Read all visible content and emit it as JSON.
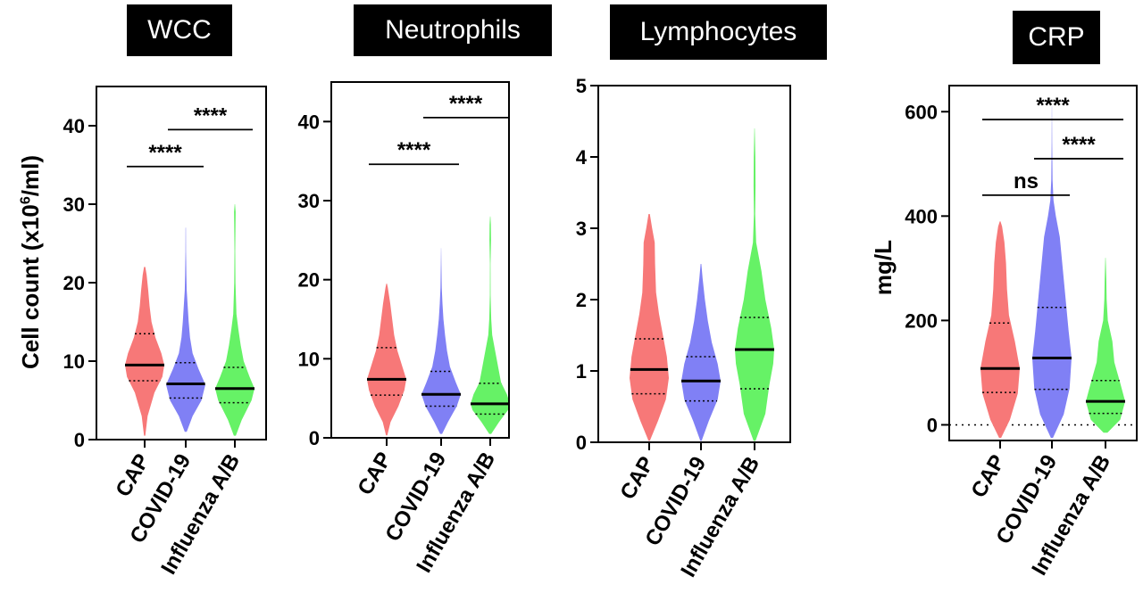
{
  "figure": {
    "colors": {
      "CAP": "#f77878",
      "COVID-19": "#8080f5",
      "Influenza A/B": "#66f266",
      "axis": "#000000"
    }
  },
  "chart_data": [
    {
      "type": "violin",
      "title": "WCC",
      "ylabel": "Cell count (x10⁶/ml)",
      "ylabel_parts": {
        "pre": "Cell count (x10",
        "sup": "6",
        "post": "/ml)"
      },
      "ylim": [
        0,
        45
      ],
      "yticks": [
        0,
        10,
        20,
        30,
        40
      ],
      "categories": [
        "CAP",
        "COVID-19",
        "Influenza A/B"
      ],
      "series": [
        {
          "name": "CAP",
          "median": 9.5,
          "q1": 7.5,
          "q3": 13.5,
          "min": 0.5,
          "max": 22,
          "profile": [
            [
              0.5,
              0.03
            ],
            [
              3,
              0.15
            ],
            [
              6,
              0.5
            ],
            [
              8,
              0.9
            ],
            [
              9.5,
              1.0
            ],
            [
              11,
              0.85
            ],
            [
              13,
              0.55
            ],
            [
              15,
              0.35
            ],
            [
              17,
              0.25
            ],
            [
              19,
              0.18
            ],
            [
              21,
              0.1
            ],
            [
              22,
              0.03
            ]
          ]
        },
        {
          "name": "COVID-19",
          "median": 7.1,
          "q1": 5.3,
          "q3": 9.8,
          "min": 1,
          "max": 27,
          "profile": [
            [
              1,
              0.05
            ],
            [
              3,
              0.35
            ],
            [
              5,
              0.8
            ],
            [
              7,
              1.0
            ],
            [
              9,
              0.65
            ],
            [
              11,
              0.35
            ],
            [
              13,
              0.22
            ],
            [
              15,
              0.15
            ],
            [
              17,
              0.1
            ],
            [
              19,
              0.05
            ],
            [
              21,
              0.03
            ],
            [
              24,
              0.015
            ],
            [
              27,
              0.008
            ]
          ]
        },
        {
          "name": "Influenza A/B",
          "median": 6.5,
          "q1": 4.7,
          "q3": 9.2,
          "min": 0.5,
          "max": 30,
          "profile": [
            [
              0.5,
              0.05
            ],
            [
              2.5,
              0.35
            ],
            [
              5,
              0.85
            ],
            [
              6.5,
              1.0
            ],
            [
              8,
              0.75
            ],
            [
              10,
              0.45
            ],
            [
              12,
              0.3
            ],
            [
              14,
              0.18
            ],
            [
              16,
              0.08
            ],
            [
              20,
              0.03
            ],
            [
              24,
              0.02
            ],
            [
              27,
              0.03
            ],
            [
              29,
              0.04
            ],
            [
              30,
              0.01
            ]
          ]
        }
      ],
      "annotations": [
        {
          "label": "****",
          "from": "CAP",
          "to": "COVID-19",
          "y": 34.8
        },
        {
          "label": "****",
          "from": "COVID-19",
          "to": "Influenza A/B",
          "y": 39.5
        }
      ]
    },
    {
      "type": "violin",
      "title": "Neutrophils",
      "ylim": [
        0,
        45
      ],
      "yticks": [
        0,
        10,
        20,
        30,
        40
      ],
      "categories": [
        "CAP",
        "COVID-19",
        "Influenza A/B"
      ],
      "series": [
        {
          "name": "CAP",
          "median": 7.4,
          "q1": 5.4,
          "q3": 11.4,
          "min": 0.3,
          "max": 19.5,
          "profile": [
            [
              0.3,
              0.03
            ],
            [
              2,
              0.2
            ],
            [
              4,
              0.6
            ],
            [
              6,
              0.9
            ],
            [
              7.4,
              1.0
            ],
            [
              9,
              0.8
            ],
            [
              11,
              0.55
            ],
            [
              13,
              0.38
            ],
            [
              15,
              0.28
            ],
            [
              17,
              0.18
            ],
            [
              19,
              0.06
            ],
            [
              19.5,
              0.02
            ]
          ]
        },
        {
          "name": "COVID-19",
          "median": 5.5,
          "q1": 4,
          "q3": 8.4,
          "min": 0.5,
          "max": 24,
          "profile": [
            [
              0.5,
              0.05
            ],
            [
              2,
              0.35
            ],
            [
              4,
              0.8
            ],
            [
              5.5,
              1.0
            ],
            [
              7,
              0.75
            ],
            [
              9,
              0.45
            ],
            [
              11,
              0.3
            ],
            [
              13,
              0.2
            ],
            [
              15,
              0.12
            ],
            [
              17,
              0.07
            ],
            [
              19,
              0.03
            ],
            [
              22,
              0.015
            ],
            [
              24,
              0.005
            ]
          ]
        },
        {
          "name": "Influenza A/B",
          "median": 4.3,
          "q1": 3,
          "q3": 6.9,
          "min": 0.5,
          "max": 28,
          "profile": [
            [
              0.5,
              0.05
            ],
            [
              2,
              0.45
            ],
            [
              3.5,
              0.9
            ],
            [
              4.3,
              1.0
            ],
            [
              5.5,
              0.85
            ],
            [
              7,
              0.55
            ],
            [
              9,
              0.4
            ],
            [
              11,
              0.25
            ],
            [
              13,
              0.1
            ],
            [
              15,
              0.05
            ],
            [
              18,
              0.02
            ],
            [
              22,
              0.015
            ],
            [
              25,
              0.04
            ],
            [
              27,
              0.03
            ],
            [
              28,
              0.01
            ]
          ]
        }
      ],
      "annotations": [
        {
          "label": "****",
          "from": "CAP",
          "to": "COVID-19",
          "y": 34.6
        },
        {
          "label": "****",
          "from": "COVID-19",
          "to": "Influenza A/B",
          "y": 40.5
        }
      ]
    },
    {
      "type": "violin",
      "title": "Lymphocytes",
      "ylim": [
        0,
        5
      ],
      "yticks": [
        0,
        1,
        2,
        3,
        4,
        5
      ],
      "categories": [
        "CAP",
        "COVID-19",
        "Influenza A/B"
      ],
      "series": [
        {
          "name": "CAP",
          "median": 1.02,
          "q1": 0.68,
          "q3": 1.45,
          "min": 0.02,
          "max": 3.2,
          "profile": [
            [
              0.02,
              0.03
            ],
            [
              0.3,
              0.45
            ],
            [
              0.6,
              0.85
            ],
            [
              0.9,
              1.0
            ],
            [
              1.2,
              0.9
            ],
            [
              1.5,
              0.7
            ],
            [
              1.8,
              0.5
            ],
            [
              2.1,
              0.35
            ],
            [
              2.5,
              0.3
            ],
            [
              2.8,
              0.28
            ],
            [
              3.0,
              0.15
            ],
            [
              3.2,
              0.03
            ]
          ]
        },
        {
          "name": "COVID-19",
          "median": 0.86,
          "q1": 0.58,
          "q3": 1.2,
          "min": 0.02,
          "max": 2.5,
          "profile": [
            [
              0.02,
              0.03
            ],
            [
              0.3,
              0.4
            ],
            [
              0.6,
              0.85
            ],
            [
              0.86,
              1.0
            ],
            [
              1.1,
              0.85
            ],
            [
              1.4,
              0.55
            ],
            [
              1.7,
              0.35
            ],
            [
              2.0,
              0.2
            ],
            [
              2.3,
              0.08
            ],
            [
              2.5,
              0.02
            ]
          ]
        },
        {
          "name": "Influenza A/B",
          "median": 1.3,
          "q1": 0.75,
          "q3": 1.75,
          "min": 0.02,
          "max": 4.4,
          "profile": [
            [
              0.02,
              0.05
            ],
            [
              0.4,
              0.55
            ],
            [
              0.8,
              0.75
            ],
            [
              1.1,
              0.95
            ],
            [
              1.3,
              1.0
            ],
            [
              1.6,
              0.85
            ],
            [
              2.0,
              0.55
            ],
            [
              2.4,
              0.35
            ],
            [
              2.8,
              0.08
            ],
            [
              3.2,
              0.03
            ],
            [
              3.6,
              0.05
            ],
            [
              4.0,
              0.04
            ],
            [
              4.4,
              0.01
            ]
          ]
        }
      ],
      "annotations": []
    },
    {
      "type": "violin",
      "title": "CRP",
      "ylabel": "mg/L",
      "ylim": [
        -30,
        650
      ],
      "yticks": [
        0,
        200,
        400,
        600
      ],
      "reference_line": 0,
      "categories": [
        "CAP",
        "COVID-19",
        "Influenza A/B"
      ],
      "series": [
        {
          "name": "CAP",
          "median": 108,
          "q1": 62,
          "q3": 195,
          "min": -25,
          "max": 390,
          "profile": [
            [
              -25,
              0.05
            ],
            [
              10,
              0.5
            ],
            [
              60,
              0.9
            ],
            [
              108,
              1.0
            ],
            [
              160,
              0.75
            ],
            [
              210,
              0.45
            ],
            [
              260,
              0.35
            ],
            [
              310,
              0.3
            ],
            [
              350,
              0.22
            ],
            [
              380,
              0.1
            ],
            [
              390,
              0.02
            ]
          ]
        },
        {
          "name": "COVID-19",
          "median": 128,
          "q1": 68,
          "q3": 225,
          "min": -25,
          "max": 610,
          "profile": [
            [
              -25,
              0.05
            ],
            [
              20,
              0.6
            ],
            [
              70,
              0.9
            ],
            [
              128,
              1.0
            ],
            [
              180,
              0.85
            ],
            [
              240,
              0.7
            ],
            [
              300,
              0.55
            ],
            [
              360,
              0.4
            ],
            [
              400,
              0.2
            ],
            [
              430,
              0.08
            ],
            [
              470,
              0.03
            ],
            [
              540,
              0.015
            ],
            [
              610,
              0.005
            ]
          ]
        },
        {
          "name": "Influenza A/B",
          "median": 45,
          "q1": 22,
          "q3": 85,
          "min": -15,
          "max": 320,
          "profile": [
            [
              -15,
              0.1
            ],
            [
              10,
              0.75
            ],
            [
              45,
              1.0
            ],
            [
              80,
              0.75
            ],
            [
              120,
              0.45
            ],
            [
              160,
              0.35
            ],
            [
              200,
              0.12
            ],
            [
              240,
              0.06
            ],
            [
              280,
              0.04
            ],
            [
              320,
              0.01
            ]
          ]
        }
      ],
      "annotations": [
        {
          "label": "ns",
          "from": "CAP",
          "to": "COVID-19",
          "y": 440
        },
        {
          "label": "****",
          "from": "COVID-19",
          "to": "Influenza A/B",
          "y": 510
        },
        {
          "label": "****",
          "from": "CAP",
          "to": "Influenza A/B",
          "y": 585
        }
      ]
    }
  ]
}
